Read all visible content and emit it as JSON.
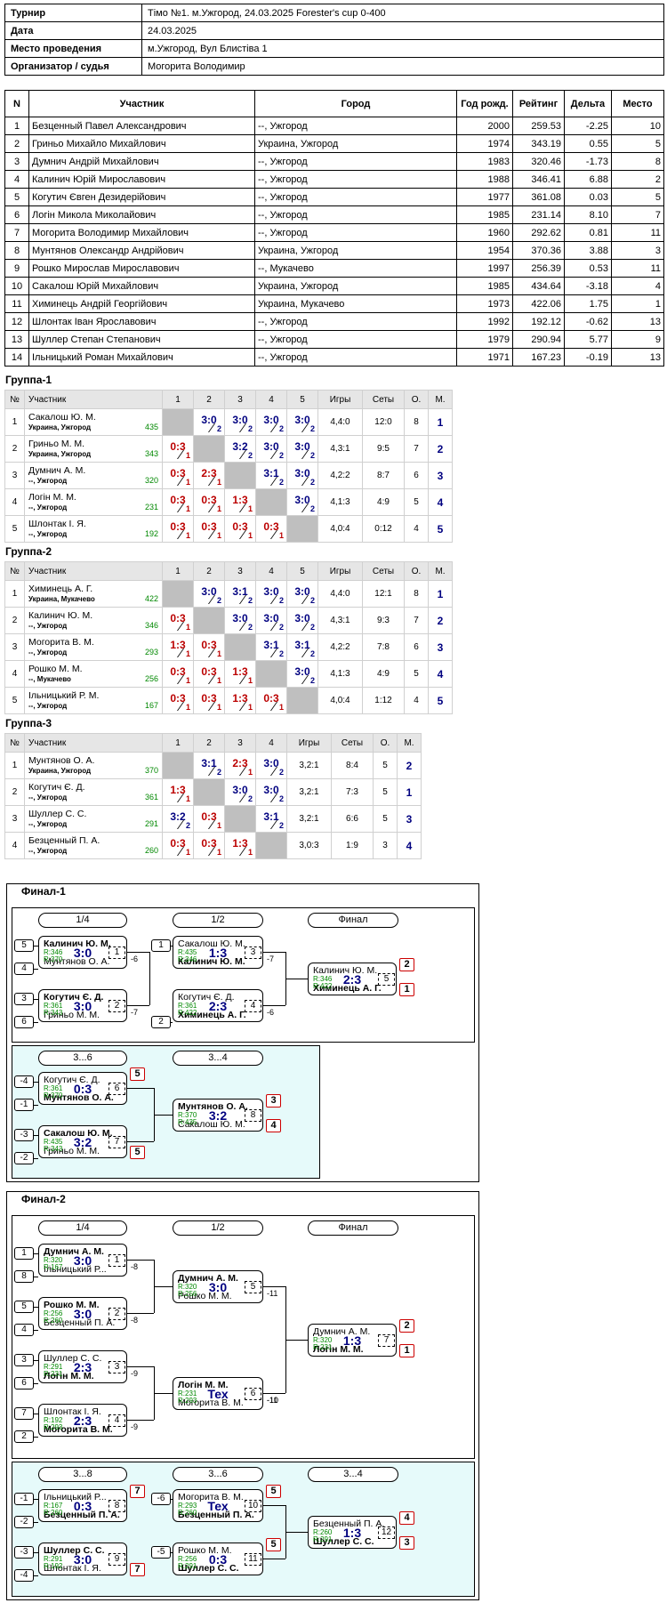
{
  "info": [
    {
      "k": "Турнир",
      "v": "Тімо №1. м.Ужгород, 24.03.2025 Forester's cup 0-400"
    },
    {
      "k": "Дата",
      "v": "24.03.2025"
    },
    {
      "k": "Место проведения",
      "v": "м.Ужгород, Вул Блистіва 1"
    },
    {
      "k": "Организатор / судья",
      "v": "Могорита Володимир"
    }
  ],
  "players_header": [
    "N",
    "Участник",
    "Город",
    "Год рожд.",
    "Рейтинг",
    "Дельта",
    "Место"
  ],
  "players": [
    [
      "1",
      "Безценный Павел Александрович",
      "--, Ужгород",
      "2000",
      "259.53",
      "-2.25",
      "10"
    ],
    [
      "2",
      "Гриньо Михайло Михайлович",
      "Украина, Ужгород",
      "1974",
      "343.19",
      "0.55",
      "5"
    ],
    [
      "3",
      "Думнич Андрій Михайлович",
      "--, Ужгород",
      "1983",
      "320.46",
      "-1.73",
      "8"
    ],
    [
      "4",
      "Калинич Юрій Мирославович",
      "--, Ужгород",
      "1988",
      "346.41",
      "6.88",
      "2"
    ],
    [
      "5",
      "Когутич Євген Дезидерійович",
      "--, Ужгород",
      "1977",
      "361.08",
      "0.03",
      "5"
    ],
    [
      "6",
      "Логін Микола Миколайович",
      "--, Ужгород",
      "1985",
      "231.14",
      "8.10",
      "7"
    ],
    [
      "7",
      "Могорита Володимир Михайлович",
      "--, Ужгород",
      "1960",
      "292.62",
      "0.81",
      "11"
    ],
    [
      "8",
      "Мунтянов Олександр Андрійович",
      "Украина, Ужгород",
      "1954",
      "370.36",
      "3.88",
      "3"
    ],
    [
      "9",
      "Рошко Мирослав Мирославович",
      "--, Мукачево",
      "1997",
      "256.39",
      "0.53",
      "11"
    ],
    [
      "10",
      "Сакалош Юрій Михайлович",
      "Украина, Ужгород",
      "1985",
      "434.64",
      "-3.18",
      "4"
    ],
    [
      "11",
      "Химинець Андрій Георгійович",
      "Украина, Мукачево",
      "1973",
      "422.06",
      "1.75",
      "1"
    ],
    [
      "12",
      "Шлонтак Іван Ярославович",
      "--, Ужгород",
      "1992",
      "192.12",
      "-0.62",
      "13"
    ],
    [
      "13",
      "Шуллер Степан Степанович",
      "--, Ужгород",
      "1979",
      "290.94",
      "5.77",
      "9"
    ],
    [
      "14",
      "Ільницький Роман Михайлович",
      "--, Ужгород",
      "1971",
      "167.23",
      "-0.19",
      "13"
    ]
  ],
  "group_header": {
    "no": "№",
    "name": "Участник",
    "games": "Игры",
    "sets": "Сеты",
    "o": "О.",
    "m": "М."
  },
  "groups": [
    {
      "title": "Группа-1",
      "players": [
        {
          "n": "1",
          "name": "Сакалош Ю. М.",
          "city": "Украина, Ужгород",
          "r": "435",
          "res": [
            null,
            [
              "3:0",
              "2",
              "w"
            ],
            [
              "3:0",
              "2",
              "w"
            ],
            [
              "3:0",
              "2",
              "w"
            ],
            [
              "3:0",
              "2",
              "w"
            ]
          ],
          "games": "4,4:0",
          "sets": "12:0",
          "o": "8",
          "m": "1"
        },
        {
          "n": "2",
          "name": "Гриньо М. М.",
          "city": "Украина, Ужгород",
          "r": "343",
          "res": [
            [
              "0:3",
              "1",
              "l"
            ],
            null,
            [
              "3:2",
              "2",
              "w"
            ],
            [
              "3:0",
              "2",
              "w"
            ],
            [
              "3:0",
              "2",
              "w"
            ]
          ],
          "games": "4,3:1",
          "sets": "9:5",
          "o": "7",
          "m": "2"
        },
        {
          "n": "3",
          "name": "Думнич А. М.",
          "city": "--, Ужгород",
          "r": "320",
          "res": [
            [
              "0:3",
              "1",
              "l"
            ],
            [
              "2:3",
              "1",
              "l"
            ],
            null,
            [
              "3:1",
              "2",
              "w"
            ],
            [
              "3:0",
              "2",
              "w"
            ]
          ],
          "games": "4,2:2",
          "sets": "8:7",
          "o": "6",
          "m": "3"
        },
        {
          "n": "4",
          "name": "Логін М. М.",
          "city": "--, Ужгород",
          "r": "231",
          "res": [
            [
              "0:3",
              "1",
              "l"
            ],
            [
              "0:3",
              "1",
              "l"
            ],
            [
              "1:3",
              "1",
              "l"
            ],
            null,
            [
              "3:0",
              "2",
              "w"
            ]
          ],
          "games": "4,1:3",
          "sets": "4:9",
          "o": "5",
          "m": "4"
        },
        {
          "n": "5",
          "name": "Шлонтак І. Я.",
          "city": "--, Ужгород",
          "r": "192",
          "res": [
            [
              "0:3",
              "1",
              "l"
            ],
            [
              "0:3",
              "1",
              "l"
            ],
            [
              "0:3",
              "1",
              "l"
            ],
            [
              "0:3",
              "1",
              "l"
            ],
            null
          ],
          "games": "4,0:4",
          "sets": "0:12",
          "o": "4",
          "m": "5"
        }
      ]
    },
    {
      "title": "Группа-2",
      "players": [
        {
          "n": "1",
          "name": "Химинець А. Г.",
          "city": "Украина, Мукачево",
          "r": "422",
          "res": [
            null,
            [
              "3:0",
              "2",
              "w"
            ],
            [
              "3:1",
              "2",
              "w"
            ],
            [
              "3:0",
              "2",
              "w"
            ],
            [
              "3:0",
              "2",
              "w"
            ]
          ],
          "games": "4,4:0",
          "sets": "12:1",
          "o": "8",
          "m": "1"
        },
        {
          "n": "2",
          "name": "Калинич Ю. М.",
          "city": "--, Ужгород",
          "r": "346",
          "res": [
            [
              "0:3",
              "1",
              "l"
            ],
            null,
            [
              "3:0",
              "2",
              "w"
            ],
            [
              "3:0",
              "2",
              "w"
            ],
            [
              "3:0",
              "2",
              "w"
            ]
          ],
          "games": "4,3:1",
          "sets": "9:3",
          "o": "7",
          "m": "2"
        },
        {
          "n": "3",
          "name": "Могорита В. М.",
          "city": "--, Ужгород",
          "r": "293",
          "res": [
            [
              "1:3",
              "1",
              "l"
            ],
            [
              "0:3",
              "1",
              "l"
            ],
            null,
            [
              "3:1",
              "2",
              "w"
            ],
            [
              "3:1",
              "2",
              "w"
            ]
          ],
          "games": "4,2:2",
          "sets": "7:8",
          "o": "6",
          "m": "3"
        },
        {
          "n": "4",
          "name": "Рошко М. М.",
          "city": "--, Мукачево",
          "r": "256",
          "res": [
            [
              "0:3",
              "1",
              "l"
            ],
            [
              "0:3",
              "1",
              "l"
            ],
            [
              "1:3",
              "1",
              "l"
            ],
            null,
            [
              "3:0",
              "2",
              "w"
            ]
          ],
          "games": "4,1:3",
          "sets": "4:9",
          "o": "5",
          "m": "4"
        },
        {
          "n": "5",
          "name": "Ільницький Р. М.",
          "city": "--, Ужгород",
          "r": "167",
          "res": [
            [
              "0:3",
              "1",
              "l"
            ],
            [
              "0:3",
              "1",
              "l"
            ],
            [
              "1:3",
              "1",
              "l"
            ],
            [
              "0:3",
              "1",
              "l"
            ],
            null
          ],
          "games": "4,0:4",
          "sets": "1:12",
          "o": "4",
          "m": "5"
        }
      ]
    },
    {
      "title": "Группа-3",
      "players": [
        {
          "n": "1",
          "name": "Мунтянов О. А.",
          "city": "Украина, Ужгород",
          "r": "370",
          "res": [
            null,
            [
              "3:1",
              "2",
              "w"
            ],
            [
              "2:3",
              "1",
              "l"
            ],
            [
              "3:0",
              "2",
              "w"
            ]
          ],
          "games": "3,2:1",
          "sets": "8:4",
          "o": "5",
          "m": "2"
        },
        {
          "n": "2",
          "name": "Когутич Є. Д.",
          "city": "--, Ужгород",
          "r": "361",
          "res": [
            [
              "1:3",
              "1",
              "l"
            ],
            null,
            [
              "3:0",
              "2",
              "w"
            ],
            [
              "3:0",
              "2",
              "w"
            ]
          ],
          "games": "3,2:1",
          "sets": "7:3",
          "o": "5",
          "m": "1"
        },
        {
          "n": "3",
          "name": "Шуллер С. С.",
          "city": "--, Ужгород",
          "r": "291",
          "res": [
            [
              "3:2",
              "2",
              "w"
            ],
            [
              "0:3",
              "1",
              "l"
            ],
            null,
            [
              "3:1",
              "2",
              "w"
            ]
          ],
          "games": "3,2:1",
          "sets": "6:6",
          "o": "5",
          "m": "3"
        },
        {
          "n": "4",
          "name": "Безценный П. А.",
          "city": "--, Ужгород",
          "r": "260",
          "res": [
            [
              "0:3",
              "1",
              "l"
            ],
            [
              "0:3",
              "1",
              "l"
            ],
            [
              "1:3",
              "1",
              "l"
            ],
            null
          ],
          "games": "3,0:3",
          "sets": "1:9",
          "o": "3",
          "m": "4"
        }
      ]
    }
  ],
  "final1": {
    "title": "Финал-1",
    "rounds": [
      "1/4",
      "1/2",
      "Финал",
      "3...6",
      "3...4"
    ],
    "seeds": [
      "5",
      "4",
      "3",
      "6",
      "1",
      "2",
      "-4",
      "-1",
      "-3",
      "-2"
    ],
    "links": [
      "-6",
      "-7",
      "-7",
      "-6"
    ],
    "matches": [
      {
        "a": "Калинич Ю. М.",
        "b": "Мунтянов О. А.",
        "ra": "R:346",
        "rb": "R:370",
        "score": "3:0",
        "num": "1"
      },
      {
        "a": "Когутич Є. Д.",
        "b": "Гриньо М. М.",
        "ra": "R:361",
        "rb": "R:343",
        "score": "3:0",
        "num": "2"
      },
      {
        "a": "Сакалош Ю. М.",
        "b": "Калинич Ю. М.",
        "ra": "R:435",
        "rb": "R:346",
        "score": "1:3",
        "num": "3"
      },
      {
        "a": "Когутич Є. Д.",
        "b": "Химинець А. Г.",
        "ra": "R:361",
        "rb": "R:422",
        "score": "2:3",
        "num": "4"
      },
      {
        "a": "Калинич Ю. М.",
        "b": "Химинець А. Г.",
        "ra": "R:346",
        "rb": "R:422",
        "score": "2:3",
        "num": "5",
        "pa": "2",
        "pb": "1"
      },
      {
        "a": "Когутич Є. Д.",
        "b": "Мунтянов О. А.",
        "ra": "R:361",
        "rb": "R:370",
        "score": "0:3",
        "num": "6",
        "pa": "5"
      },
      {
        "a": "Сакалош Ю. М.",
        "b": "Гриньо М. М.",
        "ra": "R:435",
        "rb": "R:343",
        "score": "3:2",
        "num": "7",
        "pb": "5"
      },
      {
        "a": "Мунтянов О. А.",
        "b": "Сакалош Ю. М.",
        "ra": "R:370",
        "rb": "R:435",
        "score": "3:2",
        "num": "8",
        "pa": "3",
        "pb": "4"
      }
    ]
  },
  "final2": {
    "title": "Финал-2",
    "rounds": [
      "1/4",
      "1/2",
      "Финал",
      "3...8",
      "3...6",
      "3...4"
    ],
    "seeds": [
      "1",
      "8",
      "5",
      "4",
      "3",
      "6",
      "7",
      "2",
      "-1",
      "-2",
      "-3",
      "-4",
      "-6",
      "-5"
    ],
    "links": [
      "-8",
      "-8",
      "-11",
      "-9",
      "-9",
      "-10",
      "-11"
    ],
    "matches": [
      {
        "a": "Думнич А. М.",
        "b": "Ільницький Р...",
        "ra": "R:320",
        "rb": "R:167",
        "score": "3:0",
        "num": "1"
      },
      {
        "a": "Рошко М. М.",
        "b": "Безценный П. А.",
        "ra": "R:256",
        "rb": "R:260",
        "score": "3:0",
        "num": "2"
      },
      {
        "a": "Шуллер С. С.",
        "b": "Логін М. М.",
        "ra": "R:291",
        "rb": "R:231",
        "score": "2:3",
        "num": "3"
      },
      {
        "a": "Шлонтак І. Я.",
        "b": "Могорита В. М.",
        "ra": "R:192",
        "rb": "R:293",
        "score": "2:3",
        "num": "4"
      },
      {
        "a": "Думнич А. М.",
        "b": "Рошко М. М.",
        "ra": "R:320",
        "rb": "R:256",
        "score": "3:0",
        "num": "5"
      },
      {
        "a": "Логін М. М.",
        "b": "Могорита В. М.",
        "ra": "R:231",
        "rb": "R:293",
        "score": "Тех",
        "num": "6"
      },
      {
        "a": "Думнич А. М.",
        "b": "Логін М. М.",
        "ra": "R:320",
        "rb": "R:231",
        "score": "1:3",
        "num": "7",
        "pa": "2",
        "pb": "1"
      },
      {
        "a": "Ільницький Р...",
        "b": "Безценный П. А.",
        "ra": "R:167",
        "rb": "R:260",
        "score": "0:3",
        "num": "8",
        "pa": "7"
      },
      {
        "a": "Шуллер С. С.",
        "b": "Шлонтак І. Я.",
        "ra": "R:291",
        "rb": "R:192",
        "score": "3:0",
        "num": "9",
        "pb": "7"
      },
      {
        "a": "Могорита В. М.",
        "b": "Безценный П. А.",
        "ra": "R:293",
        "rb": "R:260",
        "score": "Тех",
        "num": "10",
        "pa": "5"
      },
      {
        "a": "Рошко М. М.",
        "b": "Шуллер С. С.",
        "ra": "R:256",
        "rb": "R:291",
        "score": "0:3",
        "num": "11",
        "pa": "5"
      },
      {
        "a": "Безценный П. А.",
        "b": "Шуллер С. С.",
        "ra": "R:260",
        "rb": "R:291",
        "score": "1:3",
        "num": "12",
        "pa": "4",
        "pb": "3"
      }
    ]
  }
}
